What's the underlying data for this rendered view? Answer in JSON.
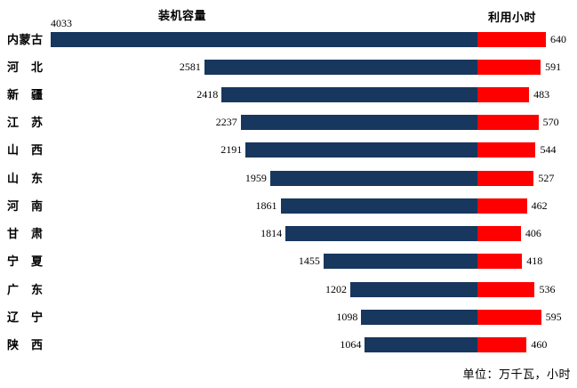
{
  "chart_data": {
    "type": "bar",
    "orientation": "horizontal-dual-panel",
    "left_title": "装机容量",
    "right_title": "利用小时",
    "unit_note": "单位：万千瓦，小时",
    "categories": [
      "内蒙古",
      "河　北",
      "新　疆",
      "江　苏",
      "山　西",
      "山　东",
      "河　南",
      "甘　肃",
      "宁　夏",
      "广　东",
      "辽　宁",
      "陕　西"
    ],
    "series": [
      {
        "name": "装机容量",
        "color": "#17375E",
        "values": [
          4033,
          2581,
          2418,
          2237,
          2191,
          1959,
          1861,
          1814,
          1455,
          1202,
          1098,
          1064
        ]
      },
      {
        "name": "利用小时",
        "color": "#FF0000",
        "values": [
          640,
          591,
          483,
          570,
          544,
          527,
          462,
          406,
          418,
          536,
          595,
          460
        ]
      }
    ],
    "left_axis_max": 4033,
    "right_axis_max": 640,
    "grid": false,
    "legend_position": "none",
    "data_labels": true
  }
}
